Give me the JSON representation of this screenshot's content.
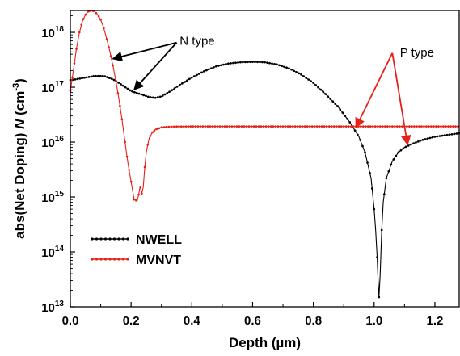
{
  "chart_data": {
    "type": "line",
    "xlabel": "Depth (µm)",
    "ylabel": {
      "prefix": "abs(Net Doping) ",
      "symbol": "N",
      "unit_open": " (cm",
      "unit_exp": "-3",
      "unit_close": ")"
    },
    "xlim": [
      0,
      1.28
    ],
    "ylim": [
      10000000000000.0,
      2.5e+18
    ],
    "yscale": "log",
    "xticks": [
      {
        "value": 0.0,
        "label": "0.0"
      },
      {
        "value": 0.2,
        "label": "0.2"
      },
      {
        "value": 0.4,
        "label": "0.4"
      },
      {
        "value": 0.6,
        "label": "0.6"
      },
      {
        "value": 0.8,
        "label": "0.8"
      },
      {
        "value": 1.0,
        "label": "1.0"
      },
      {
        "value": 1.2,
        "label": "1.2"
      }
    ],
    "yticks": [
      {
        "value": 10000000000000.0,
        "base": "10",
        "exp": "13"
      },
      {
        "value": 100000000000000.0,
        "base": "10",
        "exp": "14"
      },
      {
        "value": 1000000000000000.0,
        "base": "10",
        "exp": "15"
      },
      {
        "value": 1e+16,
        "base": "10",
        "exp": "16"
      },
      {
        "value": 1e+17,
        "base": "10",
        "exp": "17"
      },
      {
        "value": 1e+18,
        "base": "10",
        "exp": "18"
      }
    ],
    "grid": false,
    "legend_position": "lower-left",
    "series": [
      {
        "name": "NWELL",
        "color": "#000000",
        "x": [
          0.0,
          0.02,
          0.05,
          0.08,
          0.11,
          0.14,
          0.17,
          0.2,
          0.23,
          0.26,
          0.28,
          0.3,
          0.33,
          0.36,
          0.4,
          0.44,
          0.48,
          0.52,
          0.56,
          0.6,
          0.64,
          0.68,
          0.72,
          0.76,
          0.8,
          0.84,
          0.88,
          0.92,
          0.95,
          0.97,
          0.99,
          1.0,
          1.005,
          1.01,
          1.013,
          1.016,
          1.02,
          1.025,
          1.03,
          1.04,
          1.06,
          1.08,
          1.1,
          1.13,
          1.16,
          1.2,
          1.24,
          1.28
        ],
        "values": [
          1.35e+17,
          1.4e+17,
          1.5e+17,
          1.6e+17,
          1.6e+17,
          1.4e+17,
          1.1e+17,
          8.5e+16,
          7.5e+16,
          6.6e+16,
          6.4e+16,
          6.8e+16,
          8.5e+16,
          1.1e+17,
          1.5e+17,
          1.95e+17,
          2.4e+17,
          2.7e+17,
          2.85e+17,
          2.9e+17,
          2.85e+17,
          2.6e+17,
          2.2e+17,
          1.7e+17,
          1.2e+17,
          7.5e+16,
          4.5e+16,
          2.3e+16,
          1.25e+16,
          6500000000000000.0,
          2200000000000000.0,
          600000000000000.0,
          250000000000000.0,
          80000000000000.0,
          30000000000000.0,
          15000000000000.0,
          40000000000000.0,
          250000000000000.0,
          800000000000000.0,
          2200000000000000.0,
          4500000000000000.0,
          6500000000000000.0,
          8000000000000000.0,
          9500000000000000.0,
          1.1e+16,
          1.25e+16,
          1.35e+16,
          1.45e+16
        ]
      },
      {
        "name": "MVNVT",
        "color": "#e8201a",
        "x": [
          0.0,
          0.01,
          0.02,
          0.03,
          0.04,
          0.05,
          0.06,
          0.07,
          0.08,
          0.09,
          0.1,
          0.11,
          0.12,
          0.13,
          0.14,
          0.15,
          0.16,
          0.17,
          0.18,
          0.19,
          0.2,
          0.21,
          0.22,
          0.225,
          0.23,
          0.235,
          0.24,
          0.245,
          0.25,
          0.255,
          0.26,
          0.27,
          0.28,
          0.3,
          0.32,
          0.35,
          0.4,
          0.5,
          0.6,
          0.8,
          1.0,
          1.2,
          1.28
        ],
        "values": [
          8.5e+16,
          2e+17,
          5e+17,
          1e+18,
          1.6e+18,
          2.1e+18,
          2.4e+18,
          2.5e+18,
          2.4e+18,
          2.1e+18,
          1.7e+18,
          1.2e+18,
          7.5e+17,
          4.5e+17,
          2.5e+17,
          1.3e+17,
          6e+16,
          2.6e+16,
          1e+16,
          4000000000000000.0,
          1900000000000000.0,
          900000000000000.0,
          850000000000000.0,
          1100000000000000.0,
          1600000000000000.0,
          1150000000000000.0,
          1500000000000000.0,
          3500000000000000.0,
          6500000000000000.0,
          9000000000000000.0,
          1.2e+16,
          1.5e+16,
          1.7e+16,
          1.85e+16,
          1.9e+16,
          1.92e+16,
          1.93e+16,
          1.93e+16,
          1.93e+16,
          1.93e+16,
          1.93e+16,
          1.93e+16,
          1.93e+16
        ]
      }
    ],
    "annotations": [
      {
        "text": "N type",
        "anchor": [
          0.35,
          6.5e+17
        ],
        "label_at": [
          0.36,
          7e+17
        ],
        "targets": [
          [
            0.14,
            3.3e+17
          ],
          [
            0.21,
            9e+16
          ]
        ]
      },
      {
        "text": "P type",
        "anchor": [
          1.06,
          4.2e+17
        ],
        "label_at": [
          1.085,
          4.3e+17
        ],
        "targets": [
          [
            0.94,
            1.85e+16
          ],
          [
            1.11,
            9000000000000000.0
          ]
        ]
      }
    ]
  }
}
